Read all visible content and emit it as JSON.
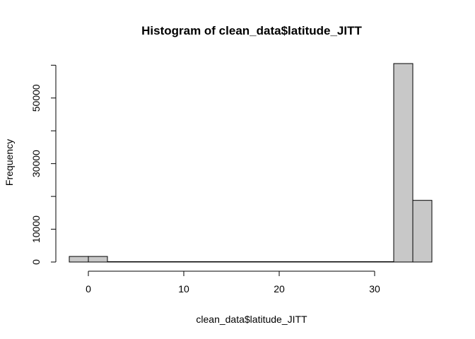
{
  "chart_data": {
    "type": "bar",
    "title": "Histogram of clean_data$latitude_JITT",
    "xlabel": "clean_data$latitude_JITT",
    "ylabel": "Frequency",
    "bin_edges": [
      -2,
      0,
      2,
      4,
      6,
      8,
      10,
      12,
      14,
      16,
      18,
      20,
      22,
      24,
      26,
      28,
      30,
      32,
      34,
      36
    ],
    "values": [
      1700,
      1700,
      30,
      30,
      30,
      30,
      30,
      30,
      30,
      30,
      30,
      30,
      30,
      30,
      30,
      30,
      30,
      60500,
      18800
    ],
    "xlim": [
      -2,
      36
    ],
    "ylim": [
      0,
      60500
    ],
    "x_ticks": [
      0,
      10,
      20,
      30
    ],
    "y_ticks": [
      0,
      10000,
      30000,
      50000
    ],
    "y_tick_marks": [
      0,
      10000,
      20000,
      30000,
      40000,
      50000,
      60000
    ],
    "bar_fill": "#c8c8c8",
    "bar_stroke": "#000000",
    "grid": false,
    "legend": "none"
  }
}
